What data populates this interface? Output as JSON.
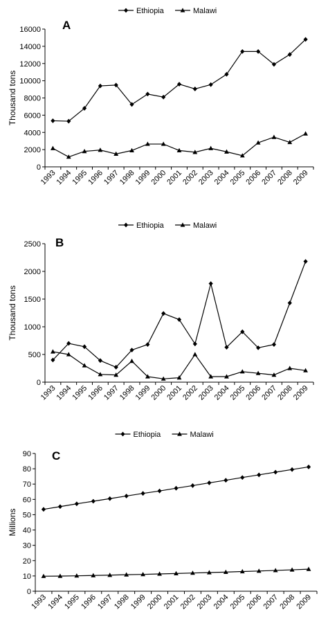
{
  "chart_data": [
    {
      "type": "line",
      "panel_label": "A",
      "ylabel": "Thousand tons",
      "xlabel": "",
      "categories": [
        "1993",
        "1994",
        "1995",
        "1996",
        "1997",
        "1998",
        "1999",
        "2000",
        "2001",
        "2002",
        "2003",
        "2004",
        "2005",
        "2006",
        "2007",
        "2008",
        "2009"
      ],
      "ylim": [
        0,
        16000
      ],
      "yticks": [
        0,
        2000,
        4000,
        6000,
        8000,
        10000,
        12000,
        14000,
        16000
      ],
      "legend_position": "top-center",
      "grid": false,
      "series": [
        {
          "name": "Ethiopia",
          "marker": "diamond",
          "values": [
            5350,
            5300,
            6800,
            9400,
            9500,
            7250,
            8450,
            8100,
            9600,
            9050,
            9550,
            10750,
            13400,
            13400,
            11900,
            13050,
            14800
          ]
        },
        {
          "name": "Malawi",
          "marker": "triangle",
          "values": [
            2150,
            1150,
            1800,
            1950,
            1500,
            1900,
            2650,
            2650,
            1900,
            1700,
            2150,
            1750,
            1300,
            2800,
            3450,
            2850,
            3850
          ]
        }
      ]
    },
    {
      "type": "line",
      "panel_label": "B",
      "ylabel": "Thousand tons",
      "xlabel": "",
      "categories": [
        "1993",
        "1994",
        "1995",
        "1996",
        "1997",
        "1998",
        "1999",
        "2000",
        "2001",
        "2002",
        "2003",
        "2004",
        "2005",
        "2006",
        "2007",
        "2008",
        "2009"
      ],
      "ylim": [
        0,
        2500
      ],
      "yticks": [
        0,
        500,
        1000,
        1500,
        2000,
        2500
      ],
      "legend_position": "top-center",
      "grid": false,
      "series": [
        {
          "name": "Ethiopia",
          "marker": "diamond",
          "values": [
            400,
            700,
            640,
            390,
            270,
            580,
            680,
            1240,
            1130,
            690,
            1780,
            630,
            910,
            620,
            680,
            1430,
            2180
          ]
        },
        {
          "name": "Malawi",
          "marker": "triangle",
          "values": [
            550,
            500,
            300,
            140,
            130,
            380,
            100,
            60,
            80,
            500,
            100,
            100,
            190,
            160,
            130,
            250,
            210
          ]
        }
      ]
    },
    {
      "type": "line",
      "panel_label": "C",
      "ylabel": "Millions",
      "xlabel": "",
      "categories": [
        "1993",
        "1994",
        "1995",
        "1996",
        "1997",
        "1998",
        "1999",
        "2000",
        "2001",
        "2002",
        "2003",
        "2004",
        "2005",
        "2006",
        "2007",
        "2008",
        "2009"
      ],
      "ylim": [
        0,
        90
      ],
      "yticks": [
        0,
        10,
        20,
        30,
        40,
        50,
        60,
        70,
        80,
        90
      ],
      "legend_position": "top-center",
      "grid": false,
      "series": [
        {
          "name": "Ethiopia",
          "marker": "diamond",
          "values": [
            53.5,
            55.3,
            57.1,
            58.8,
            60.5,
            62.2,
            63.9,
            65.5,
            67.3,
            69.0,
            70.8,
            72.5,
            74.3,
            76.0,
            77.8,
            79.5,
            81.2
          ]
        },
        {
          "name": "Malawi",
          "marker": "triangle",
          "values": [
            9.8,
            9.9,
            10.1,
            10.3,
            10.5,
            10.8,
            11.0,
            11.3,
            11.6,
            11.9,
            12.2,
            12.5,
            12.9,
            13.2,
            13.6,
            14.0,
            14.4
          ]
        }
      ]
    }
  ]
}
